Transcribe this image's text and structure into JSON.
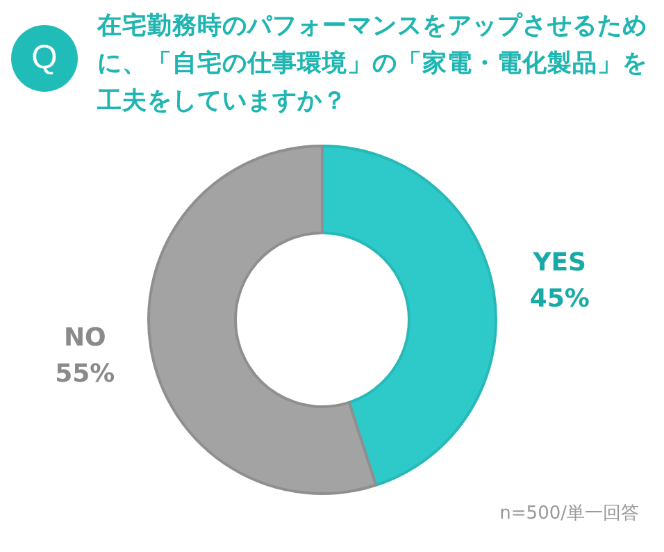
{
  "chart_data": {
    "type": "donut",
    "title": "在宅勤務時のパフォーマンスをアップさせるために、「自宅の仕事環境」の「家電・電化製品」を工夫をしていますか？",
    "categories": [
      "YES",
      "NO"
    ],
    "values": [
      45,
      55
    ],
    "colors": [
      "#2ecaca",
      "#a3a3a3"
    ],
    "value_labels": [
      "45%",
      "55%"
    ],
    "legend": false,
    "annotations": [
      "Q",
      "n=500/単一回答"
    ]
  }
}
